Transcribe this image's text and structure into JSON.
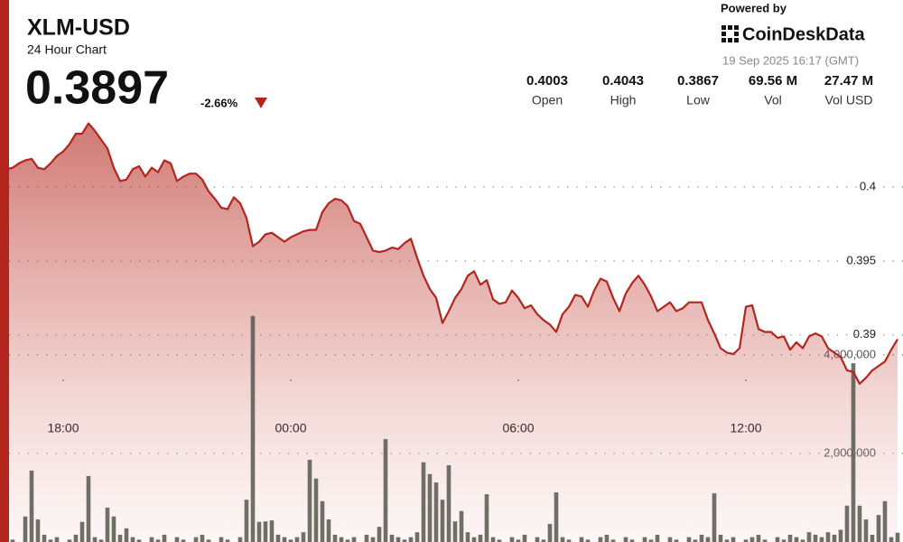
{
  "header": {
    "title": "XLM-USD",
    "subtitle": "24 Hour Chart",
    "price": "0.3897",
    "change": "-2.66%"
  },
  "powered_by": "Powered by",
  "brand": "CoinDeskData",
  "timestamp": "19 Sep 2025 16:17 (GMT)",
  "stats": [
    {
      "value": "0.4003",
      "label": "Open"
    },
    {
      "value": "0.4043",
      "label": "High"
    },
    {
      "value": "0.3867",
      "label": "Low"
    },
    {
      "value": "69.56 M",
      "label": "Vol"
    },
    {
      "value": "27.47 M",
      "label": "Vol USD"
    }
  ],
  "chart_data": {
    "type": "line",
    "xlim": [
      0.43,
      141.86
    ],
    "xticks": [
      {
        "value": 9,
        "label": "18:00"
      },
      {
        "value": 45,
        "label": "00:00"
      },
      {
        "value": 81,
        "label": "06:00"
      },
      {
        "value": 117,
        "label": "12:00"
      }
    ],
    "ylim": [
      0.376,
      0.4047
    ],
    "yticks": [
      0.39,
      0.395,
      0.4
    ],
    "y2lim": [
      0,
      8800000
    ],
    "y2ticks": [
      {
        "value": 2000000,
        "label": "2,000,000"
      },
      {
        "value": 4000000,
        "label": "4,000,000"
      }
    ],
    "grid": true,
    "series": [
      {
        "type": "line",
        "color": "#b3261e",
        "values": [
          0.4012,
          0.4013,
          0.4016,
          0.4018,
          0.4019,
          0.4013,
          0.4012,
          0.4016,
          0.4021,
          0.4024,
          0.4029,
          0.4036,
          0.4036,
          0.4043,
          0.4038,
          0.4032,
          0.4026,
          0.4013,
          0.4004,
          0.4005,
          0.4012,
          0.4014,
          0.4007,
          0.4013,
          0.401,
          0.4018,
          0.4016,
          0.4004,
          0.4007,
          0.4009,
          0.4009,
          0.4005,
          0.3997,
          0.3992,
          0.3986,
          0.3985,
          0.3993,
          0.3989,
          0.3979,
          0.396,
          0.3963,
          0.3968,
          0.3969,
          0.3966,
          0.3963,
          0.3966,
          0.3968,
          0.397,
          0.3971,
          0.3971,
          0.3983,
          0.3989,
          0.3992,
          0.3991,
          0.3987,
          0.3977,
          0.3975,
          0.3966,
          0.3957,
          0.3956,
          0.3957,
          0.3959,
          0.3958,
          0.3962,
          0.3965,
          0.3952,
          0.394,
          0.3931,
          0.3925,
          0.3908,
          0.3916,
          0.3925,
          0.3931,
          0.394,
          0.3943,
          0.3934,
          0.3937,
          0.3924,
          0.3921,
          0.3922,
          0.393,
          0.3925,
          0.3918,
          0.392,
          0.3914,
          0.391,
          0.3907,
          0.3902,
          0.3914,
          0.3919,
          0.3927,
          0.3926,
          0.3919,
          0.393,
          0.3938,
          0.3936,
          0.3925,
          0.3916,
          0.3928,
          0.3935,
          0.394,
          0.3934,
          0.3926,
          0.3916,
          0.3919,
          0.3922,
          0.3916,
          0.3918,
          0.3922,
          0.3922,
          0.3922,
          0.391,
          0.3901,
          0.3891,
          0.3888,
          0.3887,
          0.3891,
          0.3919,
          0.392,
          0.3904,
          0.3902,
          0.3902,
          0.3898,
          0.3899,
          0.389,
          0.3895,
          0.3891,
          0.3899,
          0.3901,
          0.3899,
          0.3891,
          0.3888,
          0.3885,
          0.3876,
          0.3875,
          0.3867,
          0.3871,
          0.3876,
          0.3879,
          0.3882,
          0.389,
          0.3897
        ]
      },
      {
        "type": "bar",
        "axis": "y2",
        "color": "#5f5f58",
        "values": [
          300000,
          250000,
          200000,
          720000,
          1650000,
          660000,
          350000,
          250000,
          300000,
          200000,
          250000,
          350000,
          610000,
          1540000,
          300000,
          250000,
          900000,
          720000,
          350000,
          480000,
          300000,
          250000,
          200000,
          300000,
          250000,
          350000,
          200000,
          300000,
          250000,
          200000,
          300000,
          350000,
          250000,
          200000,
          300000,
          250000,
          200000,
          300000,
          1060000,
          4790000,
          610000,
          620000,
          640000,
          350000,
          300000,
          250000,
          300000,
          400000,
          1870000,
          1490000,
          1030000,
          660000,
          350000,
          300000,
          250000,
          300000,
          200000,
          350000,
          300000,
          510000,
          2290000,
          350000,
          300000,
          250000,
          300000,
          400000,
          1820000,
          1580000,
          1410000,
          1060000,
          1760000,
          620000,
          830000,
          400000,
          300000,
          350000,
          1170000,
          300000,
          250000,
          200000,
          300000,
          250000,
          350000,
          200000,
          300000,
          250000,
          570000,
          1210000,
          300000,
          250000,
          200000,
          300000,
          250000,
          200000,
          300000,
          350000,
          250000,
          200000,
          300000,
          250000,
          200000,
          300000,
          250000,
          350000,
          200000,
          300000,
          250000,
          200000,
          300000,
          250000,
          350000,
          300000,
          1190000,
          350000,
          250000,
          300000,
          200000,
          250000,
          300000,
          350000,
          250000,
          200000,
          300000,
          250000,
          350000,
          300000,
          250000,
          400000,
          350000,
          300000,
          400000,
          350000,
          450000,
          940000,
          3830000,
          940000,
          660000,
          350000,
          750000,
          1030000,
          300000,
          390000
        ]
      }
    ]
  }
}
